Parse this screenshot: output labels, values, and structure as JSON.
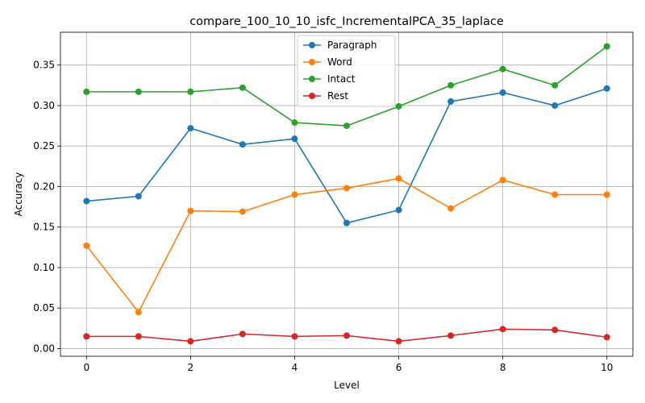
{
  "chart_data": {
    "type": "line",
    "title": "compare_100_10_10_isfc_IncrementalPCA_35_laplace",
    "xlabel": "Level",
    "ylabel": "Accuracy",
    "xlim": [
      -0.5,
      10.5
    ],
    "ylim": [
      -0.0095,
      0.3905
    ],
    "grid": true,
    "legend_position": "top-center",
    "x": [
      0,
      1,
      2,
      3,
      4,
      5,
      6,
      7,
      8,
      9,
      10
    ],
    "x_ticks": [
      0,
      2,
      4,
      6,
      8,
      10
    ],
    "x_tick_labels": [
      "0",
      "2",
      "4",
      "6",
      "8",
      "10"
    ],
    "y_ticks": [
      0.0,
      0.05,
      0.1,
      0.15,
      0.2,
      0.25,
      0.3,
      0.35
    ],
    "y_tick_labels": [
      "0.00",
      "0.05",
      "0.10",
      "0.15",
      "0.20",
      "0.25",
      "0.30",
      "0.35"
    ],
    "series": [
      {
        "name": "Paragraph",
        "color": "#1f77b4",
        "values": [
          0.182,
          0.188,
          0.272,
          0.252,
          0.259,
          0.155,
          0.171,
          0.305,
          0.316,
          0.3,
          0.321
        ]
      },
      {
        "name": "Word",
        "color": "#ff7f0e",
        "values": [
          0.127,
          0.045,
          0.17,
          0.169,
          0.19,
          0.198,
          0.21,
          0.173,
          0.208,
          0.19,
          0.19
        ]
      },
      {
        "name": "Intact",
        "color": "#2ca02c",
        "values": [
          0.317,
          0.317,
          0.317,
          0.322,
          0.279,
          0.275,
          0.299,
          0.325,
          0.345,
          0.325,
          0.373
        ]
      },
      {
        "name": "Rest",
        "color": "#d62728",
        "values": [
          0.015,
          0.015,
          0.009,
          0.018,
          0.015,
          0.016,
          0.009,
          0.016,
          0.024,
          0.023,
          0.014
        ]
      }
    ]
  }
}
